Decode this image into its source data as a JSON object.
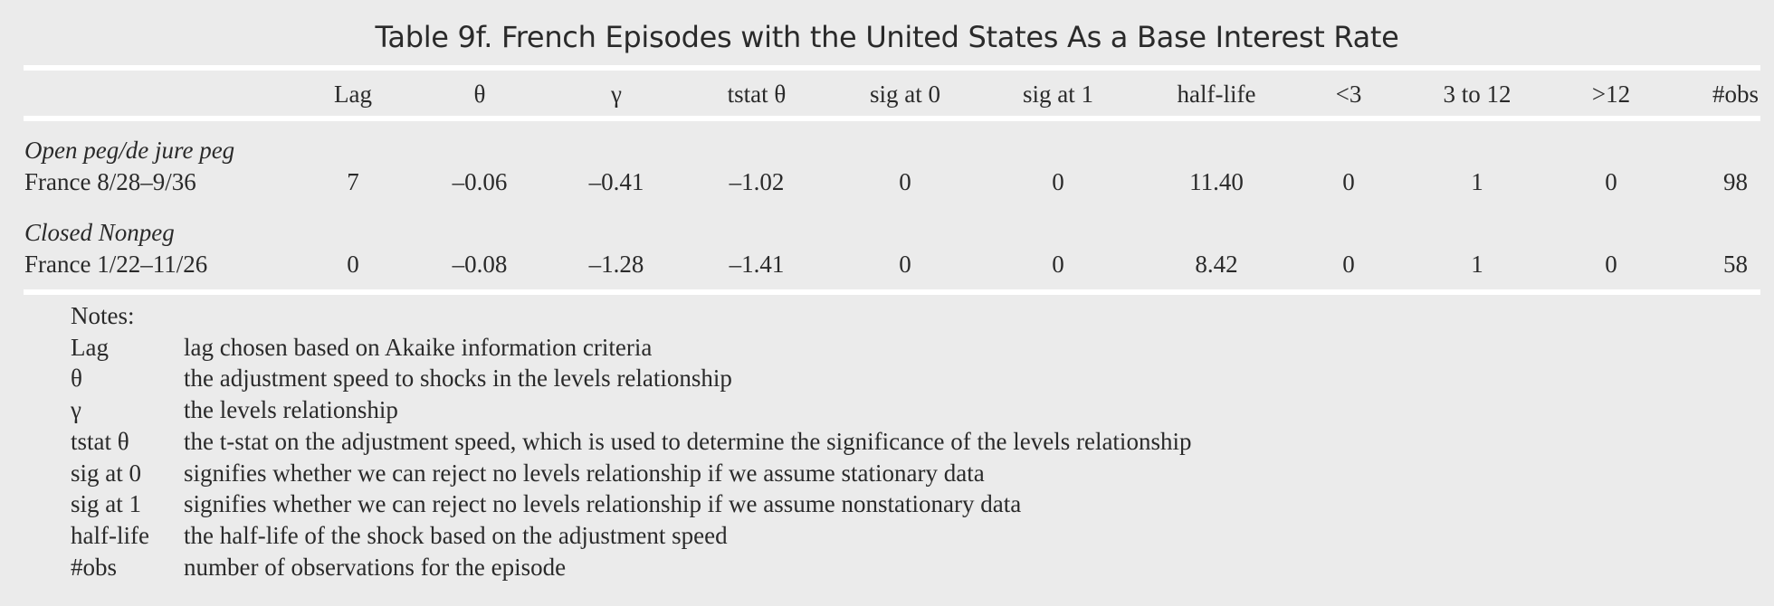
{
  "title": "Table 9f.  French Episodes with the United States As a Base Interest Rate",
  "headers": [
    "Lag",
    "θ",
    "γ",
    "tstat θ",
    "sig at 0",
    "sig at 1",
    "half-life",
    "<3",
    "3 to 12",
    ">12",
    "#obs"
  ],
  "groups": [
    {
      "label": "Open peg/de jure peg",
      "row": {
        "name": "France 8/28–9/36",
        "values": [
          "7",
          "–0.06",
          "–0.41",
          "–1.02",
          "0",
          "0",
          "11.40",
          "0",
          "1",
          "0",
          "98"
        ]
      }
    },
    {
      "label": "Closed Nonpeg",
      "row": {
        "name": "France 1/22–11/26",
        "values": [
          "0",
          "–0.08",
          "–1.28",
          "–1.41",
          "0",
          "0",
          "8.42",
          "0",
          "1",
          "0",
          "58"
        ]
      }
    }
  ],
  "notes": {
    "heading": "Notes:",
    "items": [
      {
        "term": "Lag",
        "desc": "lag chosen based on Akaike information criteria"
      },
      {
        "term": "θ",
        "desc": "the adjustment speed to shocks in the levels relationship"
      },
      {
        "term": "γ",
        "desc": "the levels relationship"
      },
      {
        "term": "tstat θ",
        "desc": "the t-stat on the adjustment speed, which is used to determine the significance of the levels relationship"
      },
      {
        "term": "sig at 0",
        "desc": "signifies whether we can reject no levels relationship if we assume stationary data"
      },
      {
        "term": "sig at 1",
        "desc": "signifies whether we can reject no levels relationship if we assume nonstationary data"
      },
      {
        "term": "half-life",
        "desc": "the half-life of the shock based on the adjustment speed"
      },
      {
        "term": "#obs",
        "desc": "number of observations for the episode"
      }
    ]
  }
}
